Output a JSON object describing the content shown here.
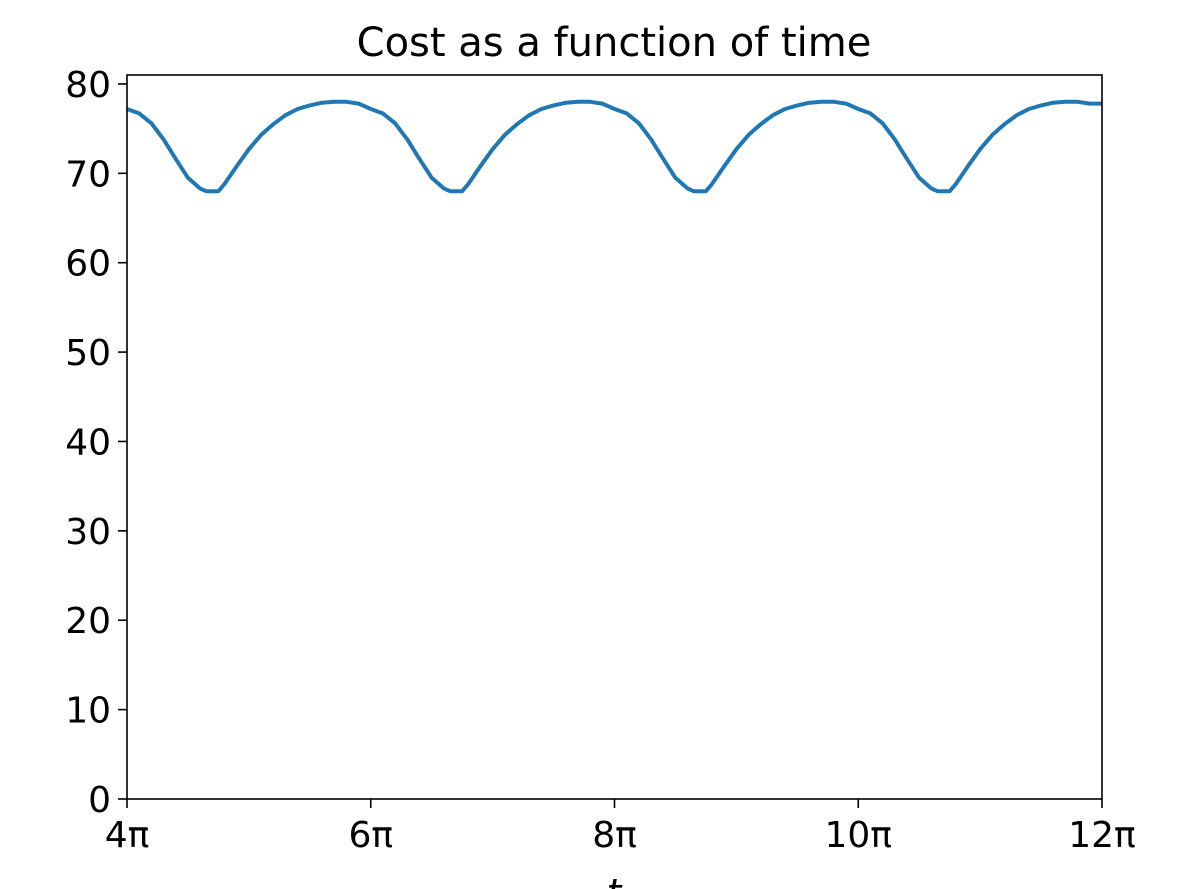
{
  "chart_data": {
    "type": "line",
    "title": "Cost as a function of time",
    "xlabel": "t",
    "ylabel": "",
    "xlim": [
      12.566,
      37.699
    ],
    "ylim": [
      0,
      81
    ],
    "x_unit": "pi",
    "x_ticks": [
      {
        "value": 4,
        "label": "4π"
      },
      {
        "value": 6,
        "label": "6π"
      },
      {
        "value": 8,
        "label": "8π"
      },
      {
        "value": 10,
        "label": "10π"
      },
      {
        "value": 12,
        "label": "12π"
      }
    ],
    "y_ticks": [
      0,
      10,
      20,
      30,
      40,
      50,
      60,
      70,
      80
    ],
    "grid": false,
    "legend": "none",
    "series": [
      {
        "color": "#1f77b4",
        "x_pi": [
          4.0,
          4.1,
          4.2,
          4.3,
          4.4,
          4.5,
          4.6,
          4.65,
          4.7,
          4.75,
          4.8,
          4.9,
          5.0,
          5.1,
          5.2,
          5.3,
          5.4,
          5.5,
          5.6,
          5.7,
          5.8,
          5.9,
          6.0,
          6.1,
          6.2,
          6.3,
          6.4,
          6.5,
          6.6,
          6.65,
          6.7,
          6.75,
          6.8,
          6.9,
          7.0,
          7.1,
          7.2,
          7.3,
          7.4,
          7.5,
          7.6,
          7.7,
          7.8,
          7.9,
          8.0,
          8.1,
          8.2,
          8.3,
          8.4,
          8.5,
          8.6,
          8.65,
          8.7,
          8.75,
          8.8,
          8.9,
          9.0,
          9.1,
          9.2,
          9.3,
          9.4,
          9.5,
          9.6,
          9.7,
          9.8,
          9.9,
          10.0,
          10.1,
          10.2,
          10.3,
          10.4,
          10.5,
          10.6,
          10.65,
          10.7,
          10.75,
          10.8,
          10.9,
          11.0,
          11.1,
          11.2,
          11.3,
          11.4,
          11.5,
          11.6,
          11.7,
          11.8,
          11.9,
          12.0
        ],
        "y": [
          77.2,
          76.7,
          75.6,
          73.8,
          71.6,
          69.5,
          68.3,
          68.0,
          68.0,
          68.0,
          68.8,
          70.8,
          72.7,
          74.3,
          75.5,
          76.5,
          77.2,
          77.6,
          77.9,
          78.0,
          78.0,
          77.8,
          77.2,
          76.7,
          75.6,
          73.8,
          71.6,
          69.5,
          68.3,
          68.0,
          68.0,
          68.0,
          68.8,
          70.8,
          72.7,
          74.3,
          75.5,
          76.5,
          77.2,
          77.6,
          77.9,
          78.0,
          78.0,
          77.8,
          77.2,
          76.7,
          75.6,
          73.8,
          71.6,
          69.5,
          68.3,
          68.0,
          68.0,
          68.0,
          68.8,
          70.8,
          72.7,
          74.3,
          75.5,
          76.5,
          77.2,
          77.6,
          77.9,
          78.0,
          78.0,
          77.8,
          77.2,
          76.7,
          75.6,
          73.8,
          71.6,
          69.5,
          68.3,
          68.0,
          68.0,
          68.0,
          68.8,
          70.8,
          72.7,
          74.3,
          75.5,
          76.5,
          77.2,
          77.6,
          77.9,
          78.0,
          78.0,
          77.8,
          77.8
        ]
      }
    ]
  }
}
